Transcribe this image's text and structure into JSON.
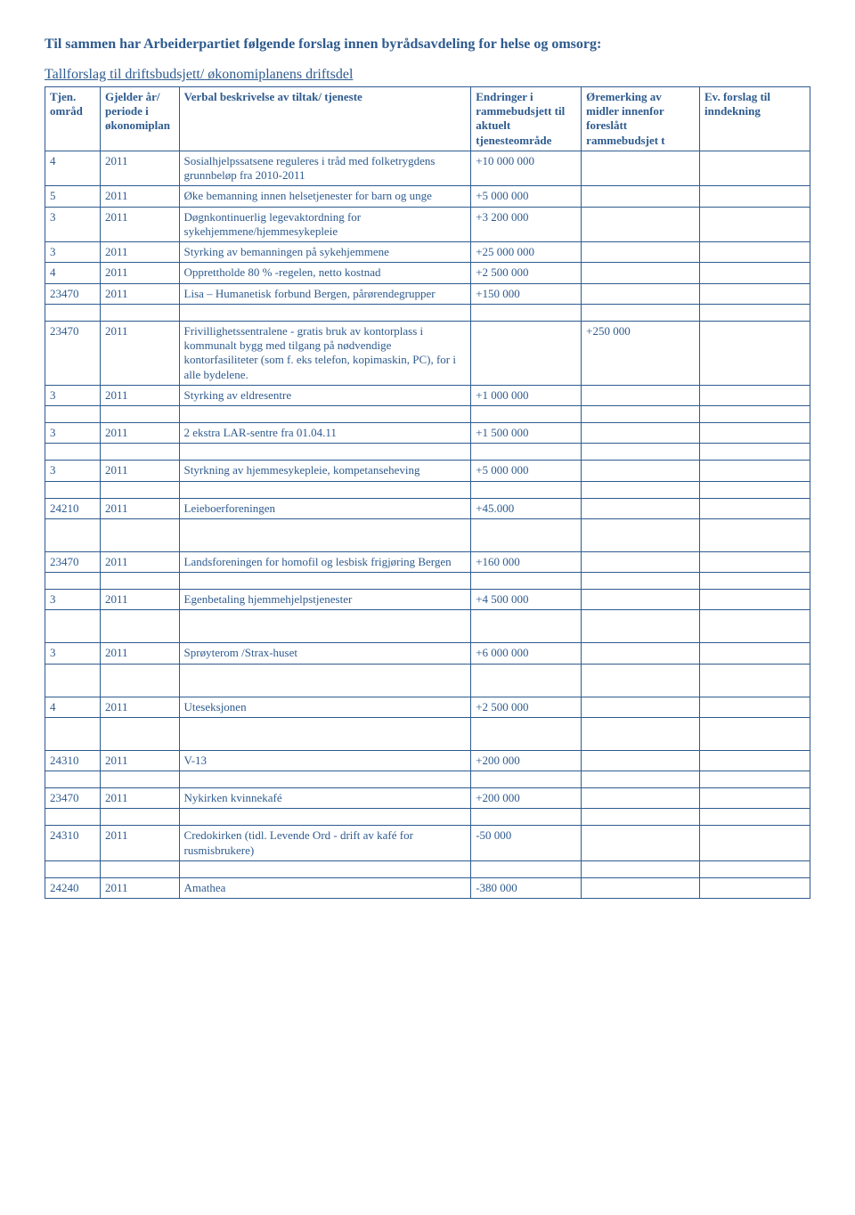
{
  "heading": "Til sammen har Arbeiderpartiet følgende forslag innen byrådsavdeling for helse og omsorg:",
  "subheading": "Tallforslag til driftsbudsjett/ økonomiplanens driftsdel",
  "colors": {
    "text": "#2e5b8f",
    "border": "#2e5b8f",
    "background": "#ffffff"
  },
  "table": {
    "columns": [
      {
        "label": "Tjen. områd",
        "width_pct": 7
      },
      {
        "label": "Gjelder år/ periode i økonomiplan",
        "width_pct": 10
      },
      {
        "label": "Verbal beskrivelse av tiltak/ tjeneste",
        "width_pct": 37
      },
      {
        "label": "Endringer i rammebudsjett til aktuelt tjenesteområde",
        "width_pct": 14
      },
      {
        "label": "Øremerking av midler innenfor foreslått rammebudsjet t",
        "width_pct": 15
      },
      {
        "label": "Ev. forslag til inndekning",
        "width_pct": 14
      }
    ],
    "rows": [
      {
        "c0": "4",
        "c1": "2011",
        "c2": "Sosialhjelpssatsene reguleres i tråd med folketrygdens grunnbeløp fra 2010-2011",
        "c3": "+10 000 000",
        "c4": "",
        "c5": ""
      },
      {
        "c0": "5",
        "c1": "2011",
        "c2": "Øke bemanning innen helsetjenester for barn og unge",
        "c3": "+5 000 000",
        "c4": "",
        "c5": ""
      },
      {
        "c0": "3",
        "c1": "2011",
        "c2": "Døgnkontinuerlig legevaktordning for sykehjemmene/hjemmesykepleie",
        "c3": "+3 200 000",
        "c4": "",
        "c5": ""
      },
      {
        "c0": "3",
        "c1": "2011",
        "c2": "Styrking av bemanningen på sykehjemmene",
        "c3": " +25 000 000",
        "c4": "",
        "c5": ""
      },
      {
        "c0": "4",
        "c1": "2011",
        "c2": "Opprettholde 80 % -regelen, netto kostnad",
        "c3": "+2 500 000",
        "c4": "",
        "c5": ""
      },
      {
        "c0": "23470",
        "c1": "2011",
        "c2": "Lisa – Humanetisk forbund Bergen, pårørendegrupper",
        "c3": "+150 000",
        "c4": "",
        "c5": ""
      },
      {
        "spacer": true
      },
      {
        "c0": "23470",
        "c1": "2011",
        "c2": "Frivillighetssentralene - gratis bruk av kontorplass i kommunalt bygg med tilgang på nødvendige kontorfasiliteter (som f. eks telefon, kopimaskin, PC), for i alle bydelene.",
        "c3": "",
        "c4": "+250 000",
        "c5": ""
      },
      {
        "c0": "3",
        "c1": "2011",
        "c2": "Styrking av eldresentre",
        "c3": "+1 000 000",
        "c4": "",
        "c5": ""
      },
      {
        "spacer": true
      },
      {
        "c0": "3",
        "c1": "2011",
        "c2": "2 ekstra LAR-sentre fra 01.04.11",
        "c3": "+1 500 000",
        "c4": "",
        "c5": ""
      },
      {
        "spacer": true
      },
      {
        "c0": "3",
        "c1": "2011",
        "c2": "Styrkning av hjemmesykepleie, kompetanseheving",
        "c3": "+5 000 000",
        "c4": "",
        "c5": ""
      },
      {
        "spacer": true
      },
      {
        "c0": "24210",
        "c1": "2011",
        "c2": "Leieboerforeningen",
        "c3": "+45.000",
        "c4": "",
        "c5": ""
      },
      {
        "spacer": true
      },
      {
        "spacer": true
      },
      {
        "c0": "23470",
        "c1": "2011",
        "c2": "Landsforeningen for homofil og lesbisk frigjøring Bergen",
        "c3": "+160 000",
        "c4": "",
        "c5": ""
      },
      {
        "spacer": true
      },
      {
        "c0": "3",
        "c1": "2011",
        "c2": "Egenbetaling hjemmehjelpstjenester",
        "c3": "+4 500 000",
        "c4": "",
        "c5": ""
      },
      {
        "spacer": true
      },
      {
        "spacer": true
      },
      {
        "c0": "3",
        "c1": "2011",
        "c2": "Sprøyterom /Strax-huset",
        "c3": "+6 000 000",
        "c4": "",
        "c5": ""
      },
      {
        "spacer": true
      },
      {
        "spacer": true
      },
      {
        "c0": "4",
        "c1": "2011",
        "c2": "Uteseksjonen",
        "c3": "+2 500 000",
        "c4": "",
        "c5": ""
      },
      {
        "spacer": true
      },
      {
        "spacer": true
      },
      {
        "c0": "24310",
        "c1": "2011",
        "c2": "V-13",
        "c3": "+200 000",
        "c4": "",
        "c5": ""
      },
      {
        "spacer": true
      },
      {
        "c0": "23470",
        "c1": "2011",
        "c2": "Nykirken kvinnekafé",
        "c3": "+200 000",
        "c4": "",
        "c5": ""
      },
      {
        "spacer": true
      },
      {
        "c0": "24310",
        "c1": "2011",
        "c2": "Credokirken (tidl. Levende Ord - drift av kafé for rusmisbrukere)",
        "c3": "-50 000",
        "c4": "",
        "c5": ""
      },
      {
        "spacer": true
      },
      {
        "c0": "24240",
        "c1": "2011",
        "c2": "Amathea",
        "c3": "-380 000",
        "c4": "",
        "c5": ""
      }
    ]
  }
}
